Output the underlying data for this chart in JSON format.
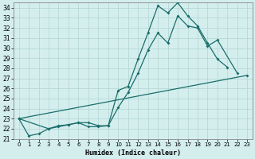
{
  "xlabel": "Humidex (Indice chaleur)",
  "x_ticks": [
    0,
    1,
    2,
    3,
    4,
    5,
    6,
    7,
    8,
    9,
    10,
    11,
    12,
    13,
    14,
    15,
    16,
    17,
    18,
    19,
    20,
    21,
    22,
    23
  ],
  "xlim": [
    -0.5,
    23.5
  ],
  "ylim": [
    21,
    34.5
  ],
  "y_ticks": [
    21,
    22,
    23,
    24,
    25,
    26,
    27,
    28,
    29,
    30,
    31,
    32,
    33,
    34
  ],
  "bg_color": "#d4eeee",
  "grid_color": "#b8d8d8",
  "line_color": "#1a6e6a",
  "line1_x": [
    0,
    1,
    2,
    3,
    4,
    5,
    6,
    7,
    8,
    9,
    10,
    11,
    12,
    13,
    14,
    15,
    16,
    17,
    18,
    19,
    20,
    21
  ],
  "line1_y": [
    23.0,
    21.3,
    21.5,
    22.0,
    22.2,
    22.4,
    22.6,
    22.2,
    22.2,
    22.3,
    25.8,
    26.2,
    28.9,
    31.5,
    34.2,
    33.5,
    34.5,
    33.2,
    32.2,
    30.5,
    28.9,
    28.1
  ],
  "line2_x": [
    0,
    3,
    4,
    5,
    6,
    7,
    8,
    9,
    10,
    11,
    12,
    13,
    14,
    15,
    16,
    17,
    18,
    19,
    20,
    22
  ],
  "line2_y": [
    23.0,
    22.0,
    22.3,
    22.4,
    22.6,
    22.6,
    22.3,
    22.3,
    24.1,
    25.6,
    27.5,
    29.8,
    31.5,
    30.5,
    33.2,
    32.2,
    32.0,
    30.2,
    30.8,
    27.5
  ],
  "line3_x": [
    0,
    23
  ],
  "line3_y": [
    23.0,
    27.3
  ]
}
